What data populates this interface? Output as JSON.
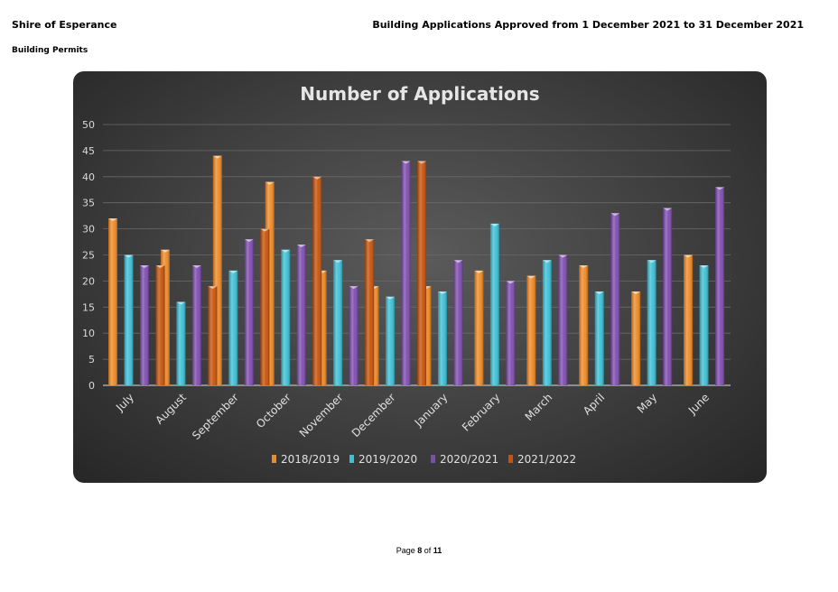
{
  "header": {
    "org": "Shire of Esperance",
    "report_title": "Building Applications Approved from 1 December 2021 to 31 December 2021",
    "section": "Building Permits"
  },
  "footer": {
    "prefix": "Page",
    "page": "8",
    "of": "of",
    "total": "11"
  },
  "chart_data": {
    "type": "bar",
    "title": "Number of Applications",
    "xlabel": "",
    "ylabel": "",
    "ylim": [
      0,
      50
    ],
    "yticks": [
      "0",
      "5",
      "10",
      "15",
      "20",
      "25",
      "30",
      "35",
      "40",
      "45",
      "50"
    ],
    "grid": true,
    "legend_position": "bottom",
    "categories": [
      "July",
      "August",
      "September",
      "October",
      "November",
      "December",
      "January",
      "February",
      "March",
      "April",
      "May",
      "June"
    ],
    "series": [
      {
        "name": "2018/2019",
        "color": "#f08a24",
        "values": [
          32,
          26,
          44,
          39,
          22,
          19,
          19,
          22,
          21,
          23,
          18,
          25
        ]
      },
      {
        "name": "2019/2020",
        "color": "#3cc0d6",
        "values": [
          25,
          16,
          22,
          26,
          24,
          17,
          18,
          31,
          24,
          18,
          24,
          23
        ]
      },
      {
        "name": "2020/2021",
        "color": "#7e4bb0",
        "values": [
          23,
          23,
          28,
          27,
          19,
          43,
          24,
          20,
          25,
          33,
          34,
          38
        ]
      },
      {
        "name": "2021/2022",
        "color": "#c8520a",
        "values": [
          23,
          19,
          30,
          40,
          28,
          43,
          null,
          null,
          null,
          null,
          null,
          null
        ]
      }
    ]
  }
}
